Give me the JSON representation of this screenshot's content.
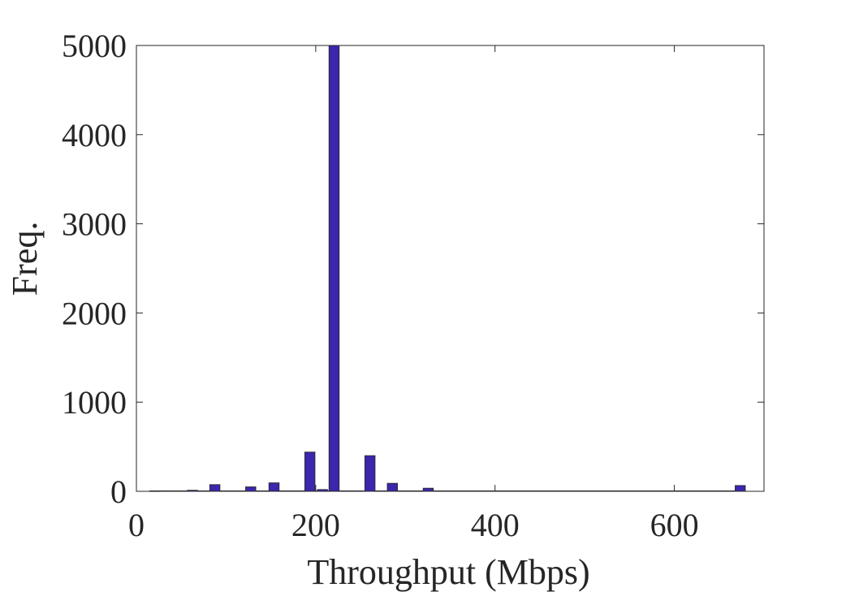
{
  "chart_data": {
    "type": "bar",
    "title": "",
    "xlabel": "Throughput (Mbps)",
    "ylabel": "Freq.",
    "xlim": [
      0,
      700
    ],
    "ylim": [
      0,
      5000
    ],
    "xticks": [
      0,
      200,
      400,
      600
    ],
    "yticks": [
      0,
      1000,
      2000,
      3000,
      4000,
      5000
    ],
    "bar_color": "#3a27ab",
    "bin_width": 11.4,
    "bins": [
      {
        "x": 20.5,
        "value": 3
      },
      {
        "x": 42.5,
        "value": 5
      },
      {
        "x": 62.5,
        "value": 12
      },
      {
        "x": 87.5,
        "value": 75
      },
      {
        "x": 127.5,
        "value": 50
      },
      {
        "x": 153.5,
        "value": 95
      },
      {
        "x": 193.5,
        "value": 440
      },
      {
        "x": 207.5,
        "value": 20
      },
      {
        "x": 220.5,
        "value": 5000
      },
      {
        "x": 260.5,
        "value": 400
      },
      {
        "x": 285.5,
        "value": 90
      },
      {
        "x": 325.5,
        "value": 35
      },
      {
        "x": 673.5,
        "value": 65
      }
    ],
    "grid": false,
    "box": true
  }
}
